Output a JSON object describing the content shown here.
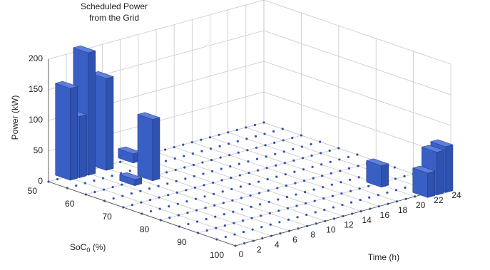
{
  "chart_data": {
    "type": "bar3d",
    "title_lines": [
      "Scheduled Power",
      "from the Grid"
    ],
    "xlabel": "Time (h)",
    "ylabel": {
      "main": "SoC",
      "subscript": "0",
      "suffix": " (%)"
    },
    "zlabel": "Power (kW)",
    "xlim": [
      0,
      24
    ],
    "xticks": [
      0,
      2,
      4,
      6,
      8,
      10,
      12,
      14,
      16,
      18,
      20,
      22,
      24
    ],
    "ylim": [
      50,
      100
    ],
    "yticks": [
      50,
      60,
      70,
      80,
      90,
      100
    ],
    "zlim": [
      0,
      200
    ],
    "zticks": [
      0,
      50,
      100,
      150,
      200
    ],
    "color": "#2f51b0",
    "grid": true,
    "bars": [
      {
        "time": 2,
        "soc": 50,
        "value": 150
      },
      {
        "time": 3,
        "soc": 50,
        "value": 100
      },
      {
        "time": 4,
        "soc": 50,
        "value": 200
      },
      {
        "time": 6,
        "soc": 50,
        "value": 150
      },
      {
        "time": 5,
        "soc": 60,
        "value": 10
      },
      {
        "time": 9,
        "soc": 50,
        "value": 15
      },
      {
        "time": 7,
        "soc": 60,
        "value": 100
      },
      {
        "time": 20,
        "soc": 90,
        "value": 35
      },
      {
        "time": 21,
        "soc": 100,
        "value": 40
      },
      {
        "time": 22,
        "soc": 100,
        "value": 70
      },
      {
        "time": 23,
        "soc": 100,
        "value": 75
      }
    ]
  }
}
